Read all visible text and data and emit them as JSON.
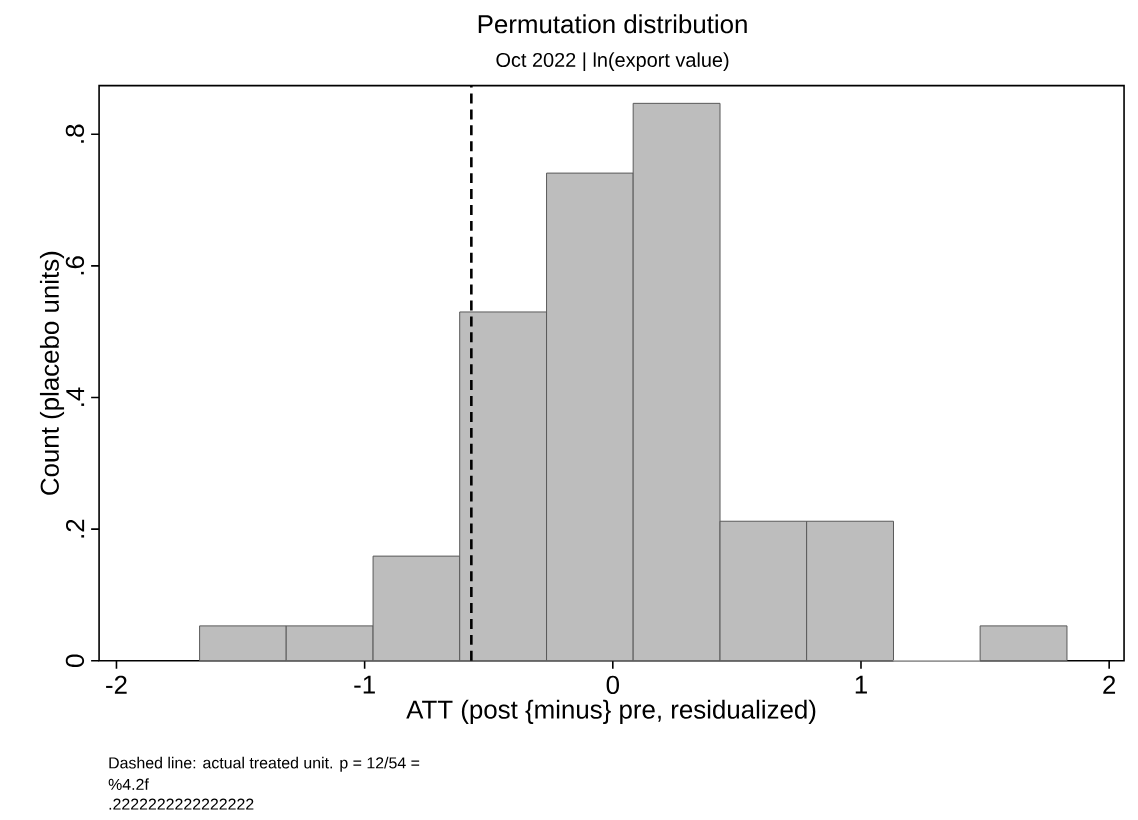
{
  "chart_data": {
    "type": "histogram",
    "title": "Permutation distribution",
    "subtitle": "Oct 2022 | ln(export value)",
    "xlabel": "ATT (post {minus} pre, residualized)",
    "ylabel": "Count (placebo units)",
    "bins": [
      -1.665,
      -1.316,
      -0.966,
      -0.617,
      -0.267,
      0.082,
      0.432,
      0.781,
      1.131,
      1.48,
      1.83
    ],
    "values": [
      0.053,
      0.053,
      0.159,
      0.53,
      0.741,
      0.847,
      0.212,
      0.212,
      0,
      0.053
    ],
    "color": "#bdbdbd",
    "xlim": [
      -2.07,
      2.06
    ],
    "ylim": [
      0,
      0.874
    ],
    "xticks": [
      -2,
      -1,
      0,
      1,
      2
    ],
    "yticks": [
      0,
      {
        "value": 0.2,
        "label": ".2"
      },
      {
        "value": 0.4,
        "label": ".4"
      },
      {
        "value": 0.6,
        "label": ".6"
      },
      {
        "value": 0.8,
        "label": ".8"
      }
    ],
    "ref_lines": [
      {
        "axis": "x",
        "value": -0.57,
        "color": "#000000",
        "line_style": "dashed"
      }
    ],
    "annotations": [
      "Dashed line: actual treated unit. p = 12/54 =",
      "%4.2f",
      ".2222222222222222"
    ]
  }
}
